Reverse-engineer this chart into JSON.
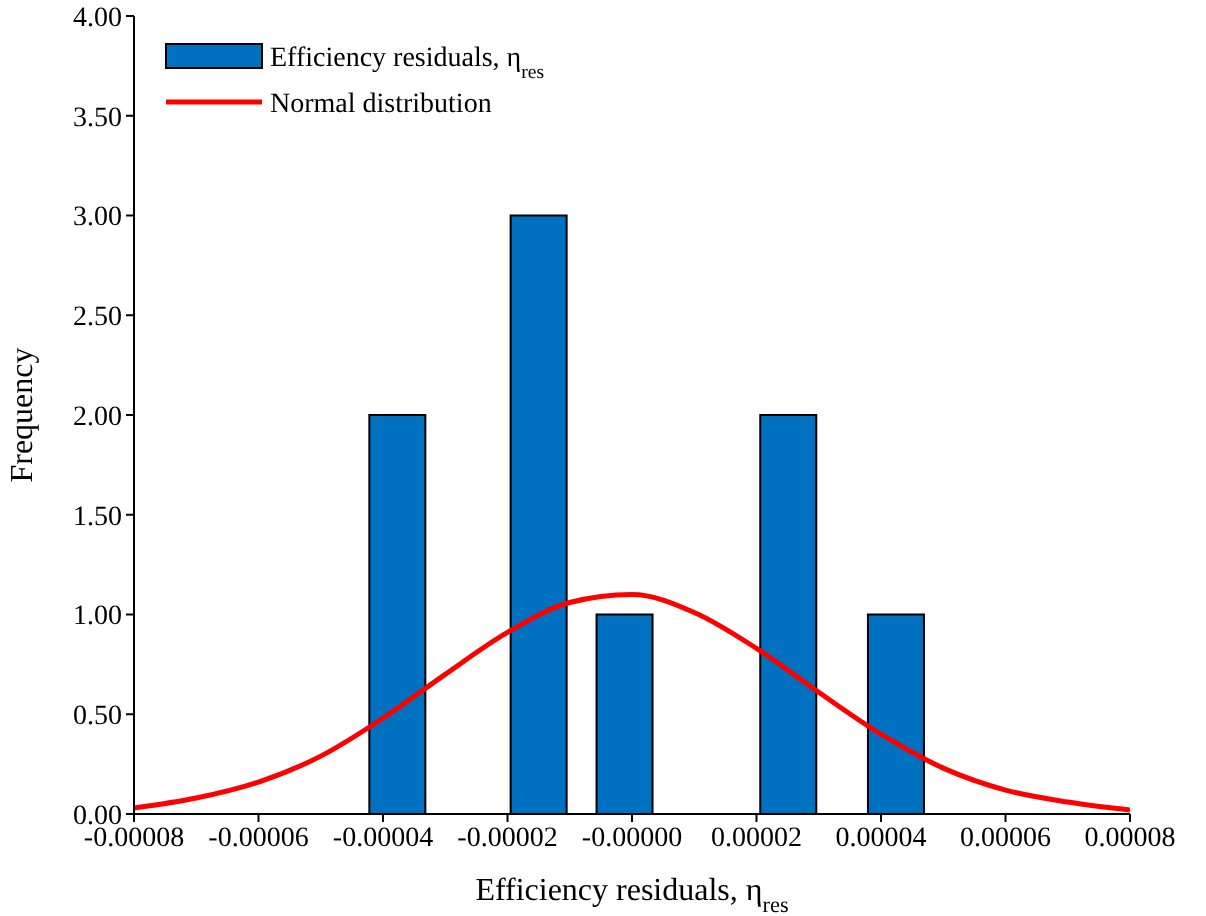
{
  "chart_data": {
    "type": "bar",
    "xlabel": "Efficiency residuals,  η$_{res}$",
    "ylabel": "Frequency",
    "xlim": [
      -8e-05,
      8e-05
    ],
    "xticks": [
      {
        "value": -8e-05,
        "label": "-0.00008"
      },
      {
        "value": -6e-05,
        "label": "-0.00006"
      },
      {
        "value": -4e-05,
        "label": "-0.00004"
      },
      {
        "value": -2e-05,
        "label": "-0.00002"
      },
      {
        "value": 0,
        "label": "-0.00000"
      },
      {
        "value": 2e-05,
        "label": "0.00002"
      },
      {
        "value": 4e-05,
        "label": "0.00004"
      },
      {
        "value": 6e-05,
        "label": "0.00006"
      },
      {
        "value": 8e-05,
        "label": "0.00008"
      }
    ],
    "ylim": [
      0,
      4
    ],
    "yticks": [
      {
        "value": 0,
        "label": "0.00"
      },
      {
        "value": 0.5,
        "label": "0.50"
      },
      {
        "value": 1,
        "label": "1.00"
      },
      {
        "value": 1.5,
        "label": "1.50"
      },
      {
        "value": 2,
        "label": "2.00"
      },
      {
        "value": 2.5,
        "label": "2.50"
      },
      {
        "value": 3,
        "label": "3.00"
      },
      {
        "value": 3.5,
        "label": "3.50"
      },
      {
        "value": 4,
        "label": "4.00"
      }
    ],
    "legend": "top left",
    "series": [
      {
        "name": "Efficiency residuals,  η$_{res}$",
        "color": "#0070c0",
        "x": [
          -3.77e-05,
          -1.5e-05,
          -1.2e-06,
          2.51e-05,
          4.24e-05
        ],
        "values": [
          2,
          3,
          1,
          2,
          1
        ]
      },
      {
        "name": "Normal distribution",
        "type": "line",
        "color": "#ff0000",
        "marker": "none",
        "line_style": "solid",
        "x": [
          -8e-05,
          -7e-05,
          -6e-05,
          -5e-05,
          -4e-05,
          -3e-05,
          -2e-05,
          -1e-05,
          0,
          1e-05,
          2e-05,
          3e-05,
          4e-05,
          5e-05,
          6e-05,
          7e-05,
          8e-05
        ],
        "values": [
          0.03,
          0.08,
          0.16,
          0.29,
          0.48,
          0.7,
          0.91,
          1.06,
          1.1,
          1.01,
          0.83,
          0.61,
          0.4,
          0.23,
          0.12,
          0.06,
          0.02
        ]
      }
    ]
  }
}
